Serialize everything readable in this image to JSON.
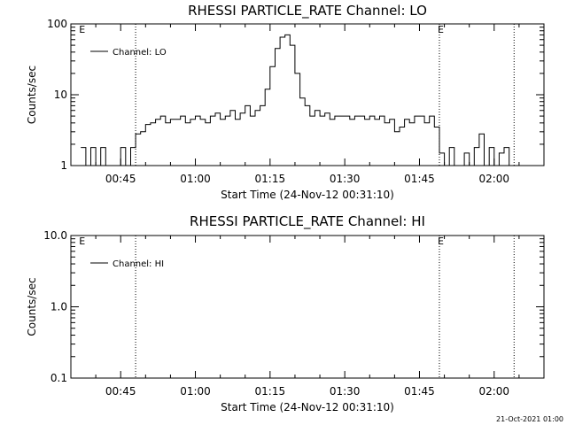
{
  "chart_data": [
    {
      "type": "line",
      "title": "RHESSI PARTICLE_RATE Channel: LO",
      "xlabel": "Start Time (24-Nov-12 00:31:10)",
      "ylabel": "Counts/sec",
      "yscale": "log",
      "ylim": [
        1,
        100
      ],
      "xlim": [
        "00:35",
        "02:10"
      ],
      "x_ticks": [
        "00:45",
        "01:00",
        "01:15",
        "01:30",
        "01:45",
        "02:00"
      ],
      "y_ticks": [
        "1",
        "10",
        "100"
      ],
      "legend": "top-left",
      "series": [
        {
          "name": "Channel: LO",
          "color": "#000000",
          "x": [
            "00:37",
            "00:38",
            "00:39",
            "00:40",
            "00:41",
            "00:42",
            "00:43",
            "00:44",
            "00:45",
            "00:46",
            "00:47",
            "00:48",
            "00:49",
            "00:50",
            "00:51",
            "00:52",
            "00:53",
            "00:54",
            "00:55",
            "00:56",
            "00:57",
            "00:58",
            "00:59",
            "01:00",
            "01:01",
            "01:02",
            "01:03",
            "01:04",
            "01:05",
            "01:06",
            "01:07",
            "01:08",
            "01:09",
            "01:10",
            "01:11",
            "01:12",
            "01:13",
            "01:14",
            "01:15",
            "01:16",
            "01:17",
            "01:18",
            "01:19",
            "01:20",
            "01:21",
            "01:22",
            "01:23",
            "01:24",
            "01:25",
            "01:26",
            "01:27",
            "01:28",
            "01:29",
            "01:30",
            "01:31",
            "01:32",
            "01:33",
            "01:34",
            "01:35",
            "01:36",
            "01:37",
            "01:38",
            "01:39",
            "01:40",
            "01:41",
            "01:42",
            "01:43",
            "01:44",
            "01:45",
            "01:46",
            "01:47",
            "01:48",
            "01:49",
            "01:50",
            "01:51",
            "01:52",
            "01:53",
            "01:54",
            "01:55",
            "01:56",
            "01:57",
            "01:58",
            "01:59",
            "02:00",
            "02:01",
            "02:02",
            "02:03"
          ],
          "y": [
            1.8,
            1,
            1.8,
            1,
            1.8,
            1,
            1,
            1,
            1.8,
            1,
            1.8,
            2.8,
            3,
            3.8,
            4,
            4.5,
            5,
            4,
            4.5,
            4.5,
            5,
            4,
            4.5,
            5,
            4.5,
            4,
            5,
            5.5,
            4.5,
            5,
            6,
            4.5,
            5.5,
            7,
            5,
            6,
            7,
            12,
            25,
            45,
            65,
            70,
            50,
            20,
            9,
            7,
            5,
            6,
            5,
            5.5,
            4.5,
            5,
            5,
            5,
            4.5,
            5,
            5,
            4.5,
            5,
            4.5,
            5,
            4,
            4.5,
            3,
            3.5,
            4.5,
            4,
            5,
            5,
            4,
            5,
            3.5,
            1.5,
            1,
            1.8,
            1,
            1,
            1.5,
            1,
            1.8,
            2.8,
            1,
            1.8,
            1,
            1.5,
            1.8,
            1
          ],
          "note": "values estimated by eye from the plotted curve"
        }
      ],
      "annotations": [
        {
          "text": "E",
          "x": "00:37"
        },
        {
          "text": "E",
          "x": "01:49"
        }
      ],
      "event_lines": [
        "00:48",
        "01:49",
        "02:04"
      ]
    },
    {
      "type": "line",
      "title": "RHESSI PARTICLE_RATE Channel: HI",
      "xlabel": "Start Time (24-Nov-12 00:31:10)",
      "ylabel": "Counts/sec",
      "yscale": "log",
      "ylim": [
        0.1,
        10
      ],
      "xlim": [
        "00:35",
        "02:10"
      ],
      "x_ticks": [
        "00:45",
        "01:00",
        "01:15",
        "01:30",
        "01:45",
        "02:00"
      ],
      "y_ticks": [
        "0.1",
        "1.0",
        "10.0"
      ],
      "legend": "top-left",
      "series": [
        {
          "name": "Channel: HI",
          "color": "#000000",
          "x": [],
          "y": []
        }
      ],
      "annotations": [
        {
          "text": "E",
          "x": "00:37"
        },
        {
          "text": "E",
          "x": "01:49"
        }
      ],
      "event_lines": [
        "00:48",
        "01:49",
        "02:04"
      ]
    }
  ],
  "footer": {
    "timestamp": "21-Oct-2021 01:00"
  }
}
